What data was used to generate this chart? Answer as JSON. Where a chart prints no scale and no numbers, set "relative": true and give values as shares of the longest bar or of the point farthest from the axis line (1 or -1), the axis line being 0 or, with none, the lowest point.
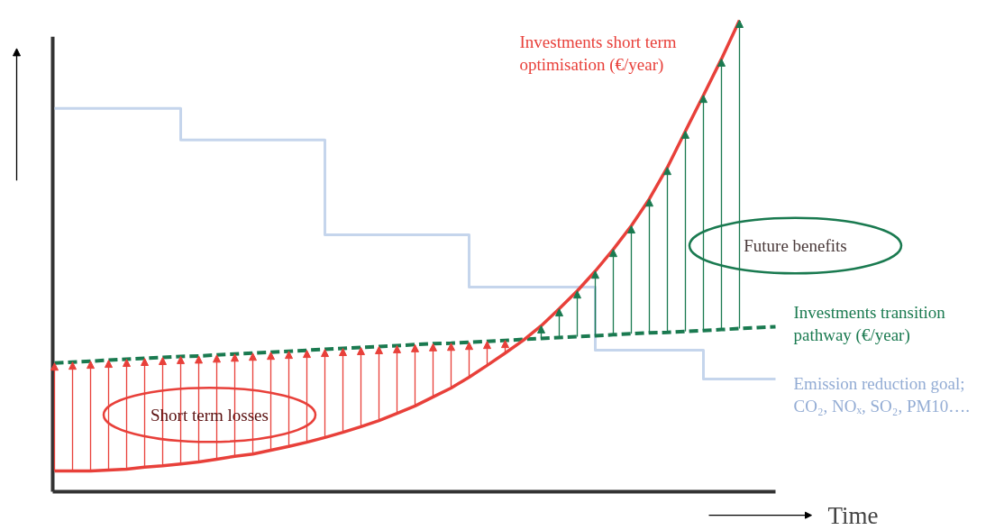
{
  "chart_data": {
    "type": "line",
    "relative": true,
    "xlabel": "Time",
    "legend": false,
    "grid": false,
    "categories": [
      null,
      null,
      null,
      null,
      null,
      null,
      null,
      null,
      null,
      null,
      null,
      null,
      null,
      null,
      null,
      null,
      null,
      null,
      null,
      null,
      null,
      null,
      null,
      null,
      null,
      null,
      null,
      null,
      null,
      null,
      null,
      null,
      null,
      null,
      null,
      null,
      null,
      null,
      null,
      null,
      null
    ],
    "series": [
      {
        "name": "Emission reduction goal; CO₂, NOₓ, SO₂, PM10….",
        "type": "step",
        "color": "#c5d5ec",
        "values": [
          0.813,
          0.813,
          0.813,
          0.813,
          0.813,
          0.813,
          0.813,
          0.746,
          0.746,
          0.746,
          0.746,
          0.746,
          0.746,
          0.746,
          0.746,
          0.545,
          0.545,
          0.545,
          0.545,
          0.545,
          0.545,
          0.545,
          0.545,
          0.434,
          0.434,
          0.434,
          0.434,
          0.434,
          0.434,
          0.434,
          0.3,
          0.3,
          0.3,
          0.3,
          0.3,
          0.3,
          0.239,
          0.239,
          0.239,
          0.239,
          0.239
        ]
      },
      {
        "name": "Investments transition pathway (€/year)",
        "line_style": "dashed",
        "color": "#1a7a50",
        "values": [
          0.273,
          0.275,
          0.277,
          0.279,
          0.281,
          0.283,
          0.285,
          0.287,
          0.288,
          0.29,
          0.292,
          0.294,
          0.296,
          0.298,
          0.3,
          0.302,
          0.304,
          0.306,
          0.308,
          0.31,
          0.312,
          0.314,
          0.315,
          0.317,
          0.319,
          0.321,
          0.323,
          0.325,
          0.327,
          0.329,
          0.331,
          0.333,
          0.335,
          0.337,
          0.338,
          0.34,
          0.342,
          0.344,
          0.346,
          0.348,
          0.35
        ]
      },
      {
        "name": "Investments short term optimisation (€/year)",
        "color": "#e8403a",
        "values": [
          0.044,
          0.044,
          0.044,
          0.046,
          0.048,
          0.052,
          0.055,
          0.059,
          0.063,
          0.069,
          0.075,
          0.08,
          0.088,
          0.096,
          0.105,
          0.115,
          0.126,
          0.138,
          0.151,
          0.166,
          0.182,
          0.201,
          0.22,
          0.243,
          0.268,
          0.294,
          0.321,
          0.352,
          0.388,
          0.426,
          0.468,
          0.514,
          0.564,
          0.621,
          0.688,
          0.765,
          0.841,
          0.918,
          1.0,
          null,
          null
        ]
      }
    ],
    "annotations": [
      "Short term losses",
      "Future benefits"
    ]
  }
}
